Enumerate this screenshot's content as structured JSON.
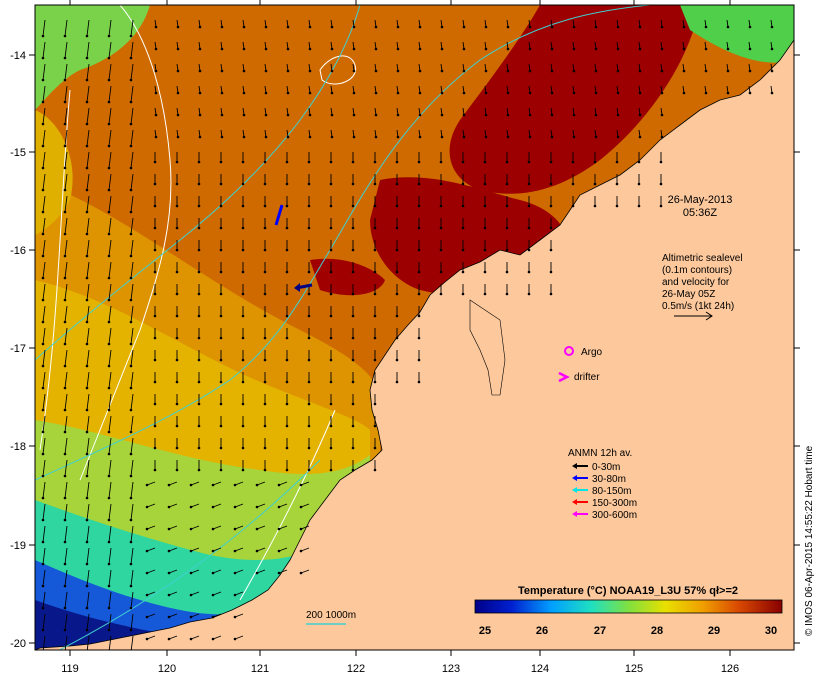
{
  "map": {
    "lon_ticks": [
      "119",
      "120",
      "121",
      "122",
      "123",
      "124",
      "125",
      "126"
    ],
    "lat_ticks": [
      "-14",
      "-15",
      "-16",
      "-17",
      "-18",
      "-19",
      "-20"
    ],
    "timestamp_date": "26-May-2013",
    "timestamp_time": "05:36Z",
    "altimetry_lines": [
      "Altimetric sealevel",
      "(0.1m contours)",
      "and velocity for",
      "26-May 05Z",
      "0.5m/s (1kt 24h)"
    ],
    "argo_label": "Argo",
    "drifter_label": "drifter",
    "depth_contour_label": "200  1000m",
    "credit": "© IMOS 06-Apr-2015 14:55:22 Hobart time"
  },
  "legend": {
    "title": "ANMN 12h av.",
    "items": [
      {
        "label": "0-30m",
        "color": "#000000"
      },
      {
        "label": "30-80m",
        "color": "#0000ff"
      },
      {
        "label": "80-150m",
        "color": "#00e5e5"
      },
      {
        "label": "150-300m",
        "color": "#ff0000"
      },
      {
        "label": "300-600m",
        "color": "#ff00ff"
      }
    ]
  },
  "colorbar": {
    "title": "Temperature (°C) NOAA19_L3U 57% qł>=2",
    "ticks": [
      "25",
      "26",
      "27",
      "28",
      "29",
      "30"
    ]
  },
  "colors": {
    "land": "#fcc89c",
    "sst_hot": "#9c0000",
    "sst_orange": "#d26a00",
    "sst_yellow": "#e5b400",
    "sst_green": "#8fd22a",
    "sst_cold": "#08188a"
  }
}
